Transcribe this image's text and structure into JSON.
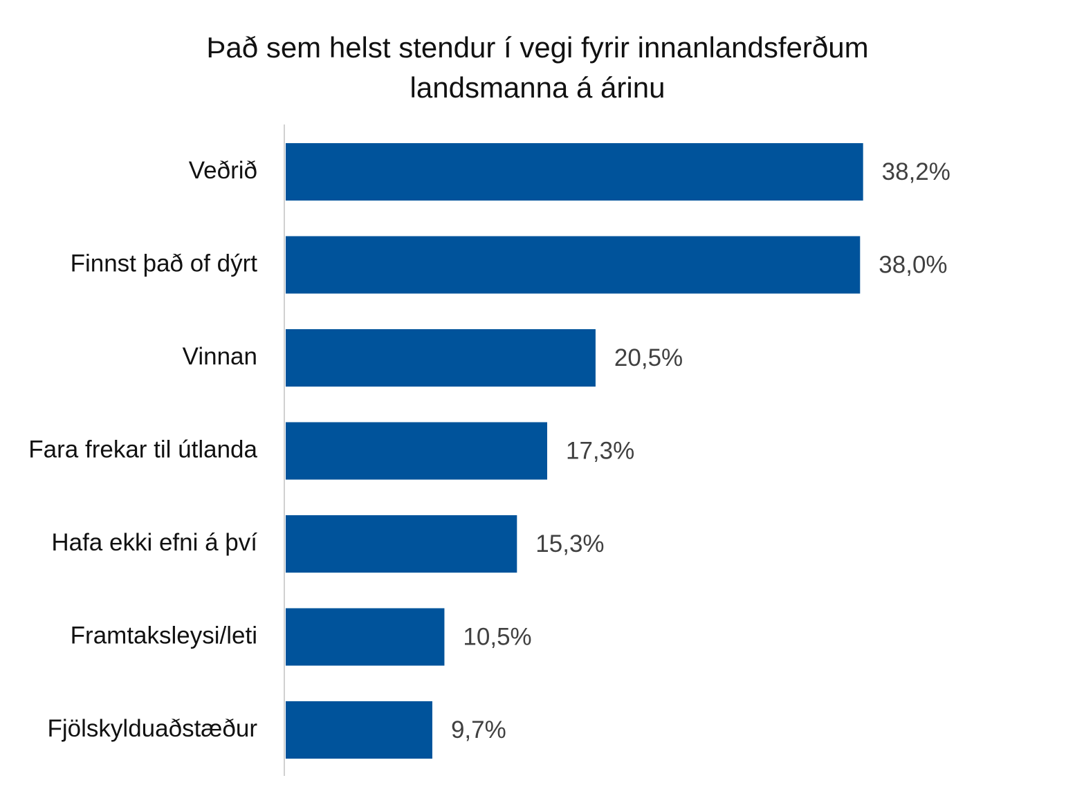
{
  "chart_data": {
    "type": "bar",
    "orientation": "horizontal",
    "title_lines": [
      "Það sem helst stendur í vegi fyrir innanlandsferðum",
      "landsmanna á árinu"
    ],
    "categories": [
      "Veðrið",
      "Finnst það of dýrt",
      "Vinnan",
      "Fara frekar til útlanda",
      "Hafa ekki efni á því",
      "Framtaksleysi/leti",
      "Fjölskylduaðstæður"
    ],
    "values": [
      38.2,
      38.0,
      20.5,
      17.3,
      15.3,
      10.5,
      9.7
    ],
    "value_labels": [
      "38,2%",
      "38,0%",
      "20,5%",
      "17,3%",
      "15,3%",
      "10,5%",
      "9,7%"
    ],
    "xlim": [
      0,
      45
    ],
    "grid": false,
    "legend": "none",
    "colors": {
      "bar": "#00539b",
      "axis": "#d0d0d0",
      "category_text": "#111111",
      "value_text": "#404040"
    }
  }
}
